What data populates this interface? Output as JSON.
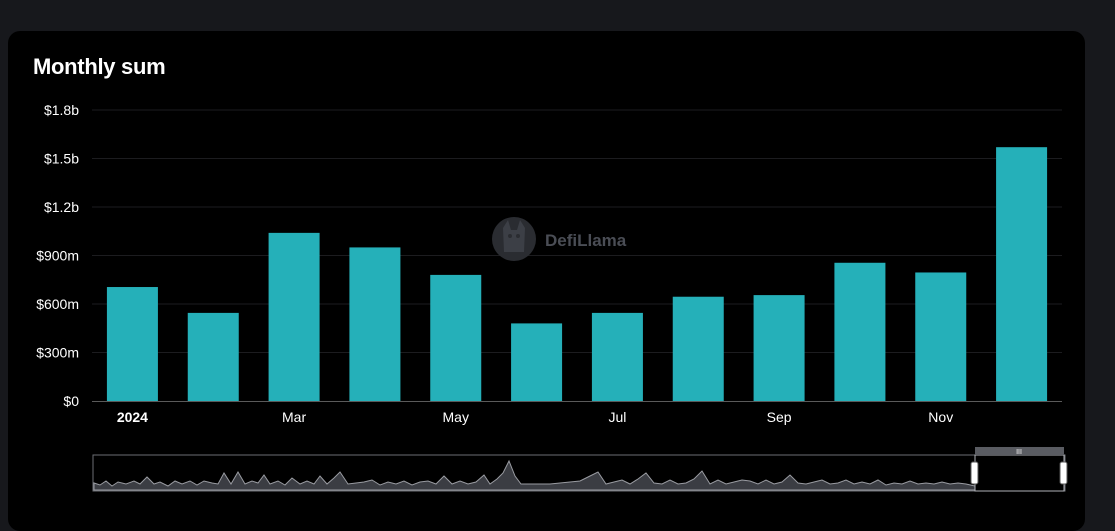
{
  "card": {
    "title": "Monthly sum"
  },
  "watermark": {
    "text": "DefiLlama"
  },
  "chart_data": {
    "type": "bar",
    "title": "Monthly sum",
    "categories": [
      "2024-01",
      "2024-02",
      "2024-03",
      "2024-04",
      "2024-05",
      "2024-06",
      "2024-07",
      "2024-08",
      "2024-09",
      "2024-10",
      "2024-11",
      "2024-12"
    ],
    "values": [
      705,
      545,
      1040,
      950,
      780,
      480,
      545,
      645,
      655,
      855,
      795,
      1570
    ],
    "unit": "$m",
    "ylim": [
      0,
      1800
    ],
    "yticks": [
      {
        "value": 0,
        "label": "$0"
      },
      {
        "value": 300,
        "label": "$300m"
      },
      {
        "value": 600,
        "label": "$600m"
      },
      {
        "value": 900,
        "label": "$900m"
      },
      {
        "value": 1200,
        "label": "$1.2b"
      },
      {
        "value": 1500,
        "label": "$1.5b"
      },
      {
        "value": 1800,
        "label": "$1.8b"
      }
    ],
    "xticks": [
      {
        "index": 0,
        "label": "2024",
        "bold": true
      },
      {
        "index": 2,
        "label": "Mar",
        "bold": false
      },
      {
        "index": 4,
        "label": "May",
        "bold": false
      },
      {
        "index": 6,
        "label": "Jul",
        "bold": false
      },
      {
        "index": 8,
        "label": "Sep",
        "bold": false
      },
      {
        "index": 10,
        "label": "Nov",
        "bold": false
      }
    ],
    "grid": true,
    "colors": {
      "bar": "#25b0b9",
      "grid": "#1c1c1f",
      "axis": "#5a5a5a"
    }
  },
  "zoom_slider": {
    "handle_grip": "III"
  }
}
